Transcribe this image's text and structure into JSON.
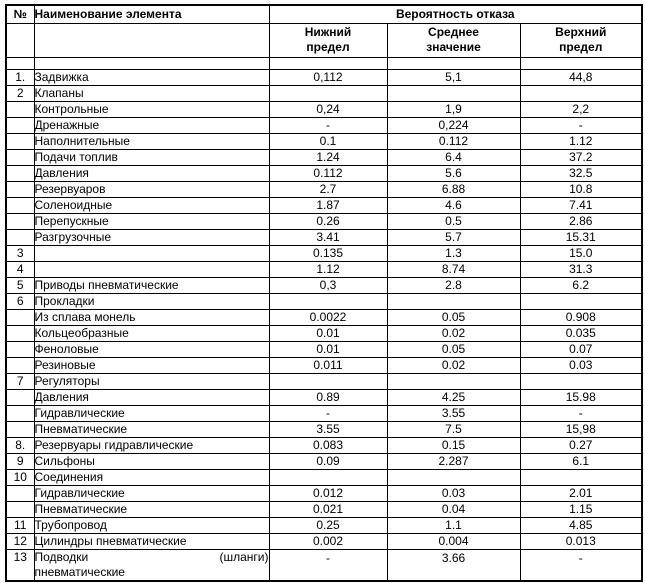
{
  "colors": {
    "background": "#ffffff",
    "border": "#000000",
    "text": "#000000"
  },
  "table": {
    "headers": {
      "num": "№",
      "name": "Наименование элемента",
      "group": "Вероятность отказа",
      "sub_lower": "Нижний\nпредел",
      "sub_mean": "Среднее\nзначение",
      "sub_upper": "Верхний\nпредел"
    },
    "rows": [
      {
        "num": "1.",
        "name": "Задвижка",
        "values": [
          "0,112",
          "5,1",
          "44,8"
        ]
      },
      {
        "num": "2",
        "name": "Клапаны",
        "values": [
          "",
          "",
          ""
        ]
      },
      {
        "num": "",
        "name": "Контрольные",
        "values": [
          "0,24",
          "1,9",
          "2,2"
        ]
      },
      {
        "num": "",
        "name": "Дренажные",
        "values": [
          "-",
          "0,224",
          "-"
        ]
      },
      {
        "num": "",
        "name": "Наполнительные",
        "values": [
          "0.1",
          "0.112",
          "1.12"
        ]
      },
      {
        "num": "",
        "name": "Подачи топлив",
        "values": [
          "1.24",
          "6.4",
          "37.2"
        ]
      },
      {
        "num": "",
        "name": "Давления",
        "values": [
          "0.112",
          "5.6",
          "32.5"
        ]
      },
      {
        "num": "",
        "name": "Резервуаров",
        "values": [
          "2.7",
          "6.88",
          "10.8"
        ]
      },
      {
        "num": "",
        "name": "Соленоидные",
        "values": [
          "1.87",
          "4.6",
          "7.41"
        ]
      },
      {
        "num": "",
        "name": "Перепускные",
        "values": [
          "0.26",
          "0.5",
          "2.86"
        ]
      },
      {
        "num": "",
        "name": "Разгрузочные",
        "values": [
          "3.41",
          "5.7",
          "15.31"
        ]
      },
      {
        "num": "3",
        "name": "",
        "values": [
          "0.135",
          "1.3",
          "15.0"
        ]
      },
      {
        "num": "4",
        "name": "",
        "values": [
          "1.12",
          "8.74",
          "31.3"
        ]
      },
      {
        "num": "5",
        "name": "Приводы пневматические",
        "values": [
          "0,3",
          "2.8",
          "6.2"
        ]
      },
      {
        "num": "6",
        "name": "Прокладки",
        "values": [
          "",
          "",
          ""
        ]
      },
      {
        "num": "",
        "name": "Из сплава монель",
        "values": [
          "0.0022",
          "0.05",
          "0.908"
        ]
      },
      {
        "num": "",
        "name": "Кольцеобразные",
        "values": [
          "0.01",
          "0.02",
          "0.035"
        ]
      },
      {
        "num": "",
        "name": "Феноловые",
        "values": [
          "0.01",
          "0.05",
          "0.07"
        ]
      },
      {
        "num": "",
        "name": "Резиновые",
        "values": [
          "0.011",
          "0.02",
          "0.03"
        ]
      },
      {
        "num": "7",
        "name": "Регуляторы",
        "values": [
          "",
          "",
          ""
        ]
      },
      {
        "num": "",
        "name": "Давления",
        "values": [
          "0.89",
          "4.25",
          "15.98"
        ]
      },
      {
        "num": "",
        "name": "Гидравлические",
        "values": [
          "-",
          "3.55",
          "-"
        ]
      },
      {
        "num": "",
        "name": "Пневматические",
        "values": [
          "3.55",
          "7.5",
          "15,98"
        ]
      },
      {
        "num": "8.",
        "name": "Резервуары гидравлические",
        "values": [
          "0.083",
          "0.15",
          "0.27"
        ]
      },
      {
        "num": "9",
        "name": "Сильфоны",
        "values": [
          "0.09",
          "2.287",
          "6.1"
        ]
      },
      {
        "num": "10",
        "name": "Соединения",
        "values": [
          "",
          "",
          ""
        ]
      },
      {
        "num": "",
        "name": "Гидравлические",
        "values": [
          "0.012",
          "0.03",
          "2.01"
        ]
      },
      {
        "num": "",
        "name": "Пневматические",
        "values": [
          "0.021",
          "0.04",
          "1.15"
        ]
      },
      {
        "num": "11",
        "name": "Трубопровод",
        "values": [
          "0.25",
          "1.1",
          "4.85"
        ]
      },
      {
        "num": "12",
        "name": "Цилиндры пневматические",
        "values": [
          "0.002",
          "0.004",
          "0.013"
        ]
      },
      {
        "num": "13",
        "name": "Подводки",
        "name_right": "(шланги)",
        "name_line2": "пневматические",
        "values": [
          "-",
          "3.66",
          "-"
        ]
      }
    ]
  }
}
